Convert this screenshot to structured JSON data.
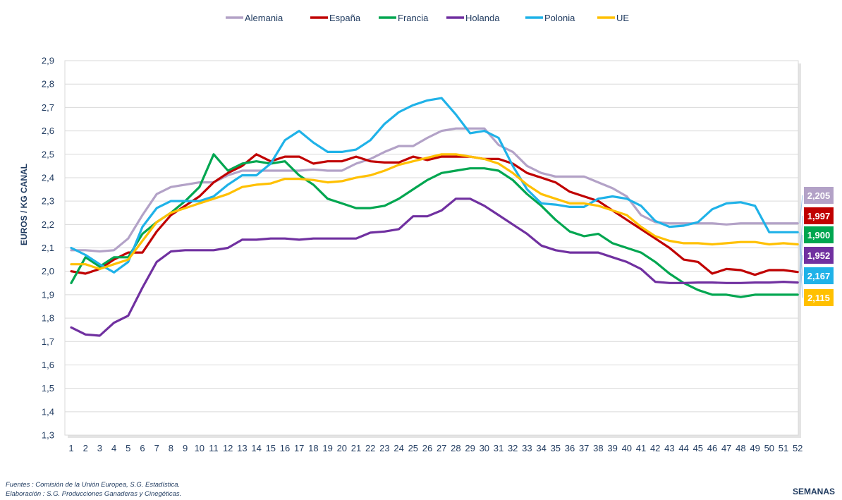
{
  "chart_data": {
    "type": "line",
    "ylabel": "EUROS / KG CANAL",
    "xlabel": "SEMANAS",
    "ylim": [
      1.3,
      2.9
    ],
    "yticks": [
      "1,3",
      "1,4",
      "1,5",
      "1,6",
      "1,7",
      "1,8",
      "1,9",
      "2,0",
      "2,1",
      "2,2",
      "2,3",
      "2,4",
      "2,5",
      "2,6",
      "2,7",
      "2,8",
      "2,9"
    ],
    "categories": [
      1,
      2,
      3,
      4,
      5,
      6,
      7,
      8,
      9,
      10,
      11,
      12,
      13,
      14,
      15,
      16,
      17,
      18,
      19,
      20,
      21,
      22,
      23,
      24,
      25,
      26,
      27,
      28,
      29,
      30,
      31,
      32,
      33,
      34,
      35,
      36,
      37,
      38,
      39,
      40,
      41,
      42,
      43,
      44,
      45,
      46,
      47,
      48,
      49,
      50,
      51,
      52
    ],
    "grid": "horizontal",
    "legend_position": "top",
    "series": [
      {
        "name": "Alemania",
        "color": "#b3a2c7",
        "end_label": "2,205",
        "values": [
          2.09,
          2.09,
          2.085,
          2.09,
          2.14,
          2.24,
          2.33,
          2.36,
          2.37,
          2.38,
          2.38,
          2.41,
          2.43,
          2.43,
          2.43,
          2.43,
          2.43,
          2.435,
          2.43,
          2.43,
          2.46,
          2.48,
          2.51,
          2.535,
          2.535,
          2.57,
          2.6,
          2.61,
          2.61,
          2.61,
          2.54,
          2.51,
          2.45,
          2.42,
          2.405,
          2.405,
          2.405,
          2.38,
          2.355,
          2.32,
          2.24,
          2.21,
          2.205,
          2.205,
          2.205,
          2.205,
          2.2,
          2.205,
          2.205,
          2.205,
          2.205,
          2.205
        ]
      },
      {
        "name": "España",
        "color": "#c00000",
        "end_label": "1,997",
        "values": [
          2.0,
          1.99,
          2.01,
          2.05,
          2.08,
          2.08,
          2.17,
          2.24,
          2.28,
          2.32,
          2.38,
          2.42,
          2.45,
          2.5,
          2.47,
          2.49,
          2.49,
          2.46,
          2.47,
          2.47,
          2.49,
          2.47,
          2.465,
          2.465,
          2.49,
          2.475,
          2.49,
          2.49,
          2.49,
          2.48,
          2.48,
          2.46,
          2.42,
          2.4,
          2.38,
          2.34,
          2.32,
          2.3,
          2.26,
          2.22,
          2.18,
          2.14,
          2.1,
          2.05,
          2.04,
          1.99,
          2.01,
          2.005,
          1.985,
          2.005,
          2.005,
          1.997
        ]
      },
      {
        "name": "Francia",
        "color": "#00a650",
        "end_label": "1,900",
        "values": [
          1.95,
          2.06,
          2.02,
          2.06,
          2.06,
          2.16,
          2.21,
          2.25,
          2.3,
          2.36,
          2.5,
          2.43,
          2.46,
          2.47,
          2.46,
          2.47,
          2.41,
          2.37,
          2.31,
          2.29,
          2.27,
          2.27,
          2.28,
          2.31,
          2.35,
          2.39,
          2.42,
          2.43,
          2.44,
          2.44,
          2.43,
          2.39,
          2.33,
          2.28,
          2.22,
          2.17,
          2.15,
          2.16,
          2.12,
          2.1,
          2.08,
          2.04,
          1.99,
          1.95,
          1.92,
          1.9,
          1.9,
          1.89,
          1.9,
          1.9,
          1.9,
          1.9
        ]
      },
      {
        "name": "Holanda",
        "color": "#7030a0",
        "end_label": "1,952",
        "values": [
          1.76,
          1.73,
          1.725,
          1.78,
          1.81,
          1.93,
          2.04,
          2.085,
          2.09,
          2.09,
          2.09,
          2.1,
          2.135,
          2.135,
          2.14,
          2.14,
          2.135,
          2.14,
          2.14,
          2.14,
          2.14,
          2.165,
          2.17,
          2.18,
          2.235,
          2.235,
          2.26,
          2.31,
          2.31,
          2.28,
          2.24,
          2.2,
          2.16,
          2.11,
          2.09,
          2.08,
          2.08,
          2.08,
          2.06,
          2.04,
          2.01,
          1.955,
          1.95,
          1.95,
          1.952,
          1.952,
          1.95,
          1.95,
          1.952,
          1.952,
          1.955,
          1.952
        ]
      },
      {
        "name": "Polonia",
        "color": "#1fb2e8",
        "end_label": "2,167",
        "values": [
          2.1,
          2.07,
          2.03,
          1.995,
          2.04,
          2.19,
          2.27,
          2.3,
          2.3,
          2.3,
          2.32,
          2.37,
          2.41,
          2.41,
          2.46,
          2.56,
          2.6,
          2.55,
          2.51,
          2.51,
          2.52,
          2.56,
          2.63,
          2.68,
          2.71,
          2.73,
          2.74,
          2.67,
          2.59,
          2.6,
          2.57,
          2.45,
          2.35,
          2.29,
          2.285,
          2.275,
          2.275,
          2.31,
          2.32,
          2.31,
          2.28,
          2.215,
          2.19,
          2.195,
          2.21,
          2.265,
          2.29,
          2.295,
          2.28,
          2.167,
          2.167,
          2.167
        ]
      },
      {
        "name": "UE",
        "color": "#ffc000",
        "end_label": "2,115",
        "values": [
          2.03,
          2.03,
          2.01,
          2.03,
          2.05,
          2.13,
          2.21,
          2.25,
          2.27,
          2.29,
          2.31,
          2.33,
          2.36,
          2.37,
          2.375,
          2.395,
          2.395,
          2.39,
          2.38,
          2.385,
          2.4,
          2.41,
          2.43,
          2.455,
          2.47,
          2.485,
          2.5,
          2.5,
          2.49,
          2.48,
          2.46,
          2.42,
          2.37,
          2.33,
          2.31,
          2.29,
          2.29,
          2.28,
          2.26,
          2.24,
          2.19,
          2.15,
          2.13,
          2.12,
          2.12,
          2.115,
          2.12,
          2.125,
          2.125,
          2.115,
          2.12,
          2.115
        ]
      }
    ]
  },
  "footnotes": {
    "line1": "Fuentes : Comisión de la Unión Europea, S.G. Estadística.",
    "line2": "Elaboración : S.G. Producciones Ganaderas y Cinegéticas."
  }
}
